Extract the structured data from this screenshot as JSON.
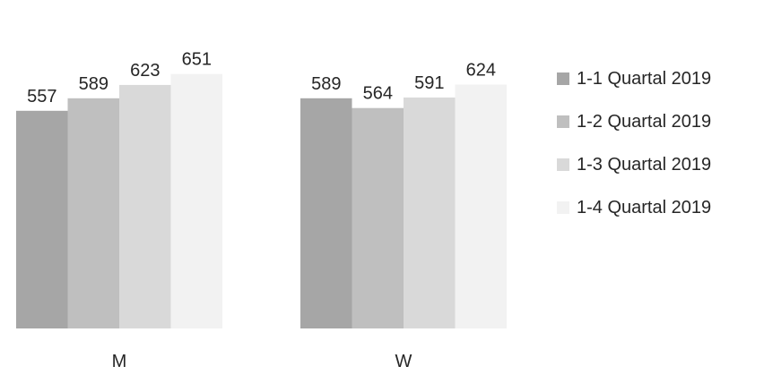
{
  "chart_data": {
    "type": "bar",
    "title": "",
    "xlabel": "",
    "ylabel": "",
    "categories": [
      "M",
      "W"
    ],
    "series": [
      {
        "name": "1-1 Quartal 2019",
        "values": [
          557,
          589
        ],
        "color": "#a6a6a6"
      },
      {
        "name": "1-2 Quartal 2019",
        "values": [
          589,
          564
        ],
        "color": "#bfbfbf"
      },
      {
        "name": "1-3 Quartal 2019",
        "values": [
          623,
          591
        ],
        "color": "#d9d9d9"
      },
      {
        "name": "1-4 Quartal 2019",
        "values": [
          651,
          624
        ],
        "color": "#f2f2f2"
      }
    ],
    "data_labels": true,
    "grid": false,
    "legend_position": "right",
    "ylim": [
      0,
      700
    ]
  }
}
